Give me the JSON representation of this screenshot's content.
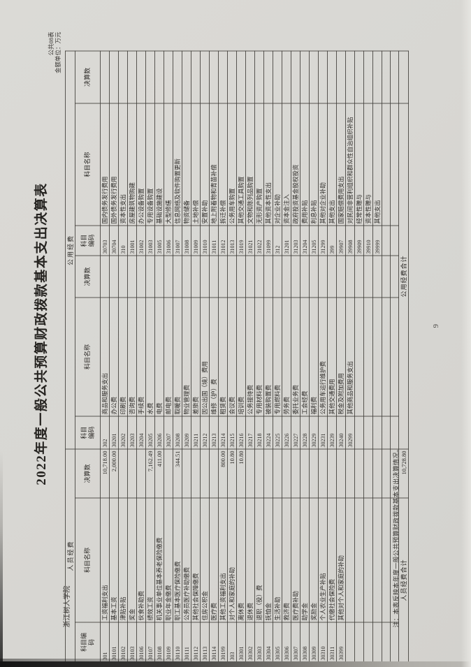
{
  "page": {
    "form_code": "公共08表",
    "unit_line": "金额单位：万元",
    "title": "2022年度一般公共预算财政拨款基本支出决算表",
    "org_name": "浙江树人学院",
    "footnote": "注：本表反映本年度一般公共预算财政拨款基本支出决算情况。",
    "page_number": "9"
  },
  "table": {
    "group_headers": {
      "personnel": "人员经费",
      "public": "公用经费"
    },
    "col_headers": [
      "科目编码",
      "科目名称",
      "决算数"
    ],
    "totals": {
      "personnel_label": "人员经费合计",
      "personnel_value": "10,728.80",
      "public_label": "公用经费合计",
      "public_value": ""
    },
    "personnel_rows": [
      [
        "301",
        "工资福利支出",
        "10,718.00"
      ],
      [
        "30101",
        "基本工资",
        "2,000.00"
      ],
      [
        "30102",
        "津贴补贴",
        ""
      ],
      [
        "30103",
        "奖金",
        ""
      ],
      [
        "30106",
        "伙食补助费",
        ""
      ],
      [
        "30107",
        "绩效工资",
        "7,162.49"
      ],
      [
        "30108",
        "机关事业单位基本养老保险缴费",
        "411.00"
      ],
      [
        "30109",
        "职业年金缴费",
        ""
      ],
      [
        "30110",
        "职工基本医疗保险缴费",
        "344.51"
      ],
      [
        "30111",
        "公务员医疗补助缴费",
        ""
      ],
      [
        "30112",
        "其他社会保障缴费",
        ""
      ],
      [
        "30113",
        "住房公积金",
        ""
      ],
      [
        "30114",
        "医疗费",
        ""
      ],
      [
        "30199",
        "其他工资福利支出",
        "800.00"
      ],
      [
        "303",
        "对个人和家庭的补助",
        "10.80"
      ],
      [
        "30301",
        "离休费",
        "10.80"
      ],
      [
        "30302",
        "退休费",
        ""
      ],
      [
        "30303",
        "退职（役）费",
        ""
      ],
      [
        "30304",
        "抚恤金",
        ""
      ],
      [
        "30305",
        "生活补助",
        ""
      ],
      [
        "30306",
        "救济费",
        ""
      ],
      [
        "30307",
        "医疗费补助",
        ""
      ],
      [
        "30308",
        "助学金",
        ""
      ],
      [
        "30309",
        "奖励金",
        ""
      ],
      [
        "30310",
        "个人农业生产补贴",
        ""
      ],
      [
        "30311",
        "代缴社会保险费",
        ""
      ],
      [
        "30399",
        "其他对个人和家庭的补助",
        ""
      ]
    ],
    "public_rows_a": [
      [
        "302",
        "商品和服务支出",
        ""
      ],
      [
        "30201",
        "办公费",
        ""
      ],
      [
        "30202",
        "印刷费",
        ""
      ],
      [
        "30203",
        "咨询费",
        ""
      ],
      [
        "30204",
        "手续费",
        ""
      ],
      [
        "30205",
        "水费",
        ""
      ],
      [
        "30206",
        "电费",
        ""
      ],
      [
        "30207",
        "邮电费",
        ""
      ],
      [
        "30208",
        "取暖费",
        ""
      ],
      [
        "30209",
        "物业管理费",
        ""
      ],
      [
        "30211",
        "差旅费",
        ""
      ],
      [
        "30212",
        "因公出国（境）费用",
        ""
      ],
      [
        "30213",
        "维修（护）费",
        ""
      ],
      [
        "30214",
        "租赁费",
        ""
      ],
      [
        "30215",
        "会议费",
        ""
      ],
      [
        "30216",
        "培训费",
        ""
      ],
      [
        "30217",
        "公务接待费",
        ""
      ],
      [
        "30218",
        "专用材料费",
        ""
      ],
      [
        "30224",
        "被装购置费",
        ""
      ],
      [
        "30225",
        "专用燃料费",
        ""
      ],
      [
        "30226",
        "劳务费",
        ""
      ],
      [
        "30227",
        "委托业务费",
        ""
      ],
      [
        "30228",
        "工会经费",
        ""
      ],
      [
        "30229",
        "福利费",
        ""
      ],
      [
        "30231",
        "公务用车运行维护费",
        ""
      ],
      [
        "30239",
        "其他交通费用",
        ""
      ],
      [
        "30240",
        "税金及附加费用",
        ""
      ],
      [
        "30299",
        "其他商品和服务支出",
        ""
      ]
    ],
    "public_rows_b": [
      [
        "30703",
        "国内债务发行费用",
        ""
      ],
      [
        "30704",
        "国外债务发行费用",
        ""
      ],
      [
        "310",
        "资本性支出",
        ""
      ],
      [
        "31001",
        "房屋建筑物购建",
        ""
      ],
      [
        "31002",
        "办公设备购置",
        ""
      ],
      [
        "31003",
        "专用设备购置",
        ""
      ],
      [
        "31005",
        "基础设施建设",
        ""
      ],
      [
        "31006",
        "大型修缮",
        ""
      ],
      [
        "31007",
        "信息网络及软件购置更新",
        ""
      ],
      [
        "31008",
        "物资储备",
        ""
      ],
      [
        "31009",
        "土地补偿",
        ""
      ],
      [
        "31010",
        "安置补助",
        ""
      ],
      [
        "31011",
        "地上附着物和青苗补偿",
        ""
      ],
      [
        "31012",
        "拆迁补偿",
        ""
      ],
      [
        "31013",
        "公务用车购置",
        ""
      ],
      [
        "31019",
        "其他交通工具购置",
        ""
      ],
      [
        "31021",
        "文物和陈列品购置",
        ""
      ],
      [
        "31022",
        "无形资产购置",
        ""
      ],
      [
        "31099",
        "其他资本性支出",
        ""
      ],
      [
        "312",
        "对企业补助",
        ""
      ],
      [
        "31201",
        "资本金注入",
        ""
      ],
      [
        "31203",
        "政府投资基金股权投资",
        ""
      ],
      [
        "31204",
        "费用补贴",
        ""
      ],
      [
        "31205",
        "利息补贴",
        ""
      ],
      [
        "31299",
        "其他对企业补助",
        ""
      ],
      [
        "399",
        "其他支出",
        ""
      ],
      [
        "39907",
        "国家赔偿费用支出",
        ""
      ],
      [
        "39908",
        "对民间非营利组织和群众性自治组织补贴",
        ""
      ],
      [
        "39909",
        "经常性赠与",
        ""
      ],
      [
        "39910",
        "资本性赠与",
        ""
      ],
      [
        "39999",
        "其他支出",
        ""
      ]
    ]
  }
}
